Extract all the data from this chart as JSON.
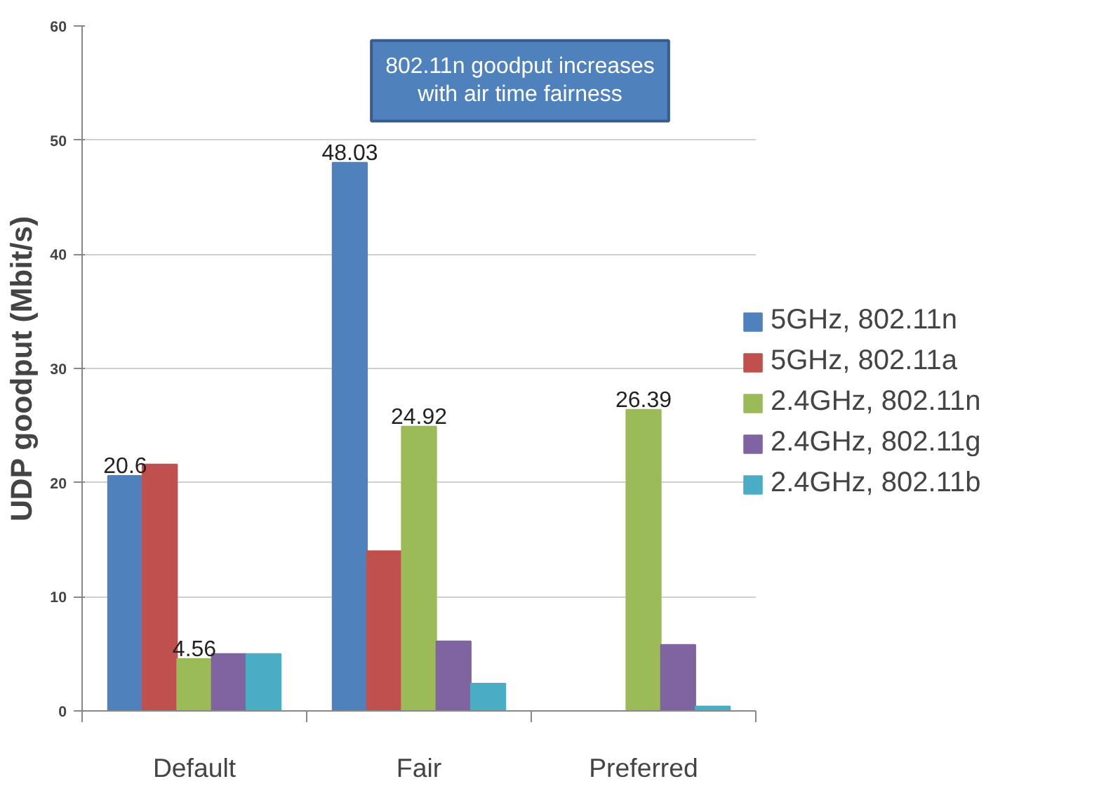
{
  "chart_data": {
    "type": "bar",
    "ylabel": "UDP goodput (Mbit/s)",
    "categories": [
      "Default",
      "Fair",
      "Preferred"
    ],
    "series": [
      {
        "name": "5GHz, 802.11n",
        "color": "#4f81bd",
        "values": [
          20.6,
          48.03,
          null
        ],
        "value_labels": [
          "20.6",
          "48.03",
          null
        ]
      },
      {
        "name": "5GHz, 802.11a",
        "color": "#c0504d",
        "values": [
          21.6,
          14.0,
          null
        ]
      },
      {
        "name": "2.4GHz, 802.11n",
        "color": "#9bbb59",
        "values": [
          4.56,
          24.92,
          26.39
        ],
        "value_labels": [
          "4.56",
          "24.92",
          "26.39"
        ]
      },
      {
        "name": "2.4GHz, 802.11g",
        "color": "#8064a2",
        "values": [
          5.0,
          6.1,
          5.8
        ]
      },
      {
        "name": "2.4GHz, 802.11b",
        "color": "#4bacc6",
        "values": [
          5.0,
          2.4,
          0.4
        ]
      }
    ],
    "ylim": [
      0,
      60
    ],
    "yticks": [
      0,
      10,
      20,
      30,
      40,
      50,
      60
    ],
    "grid": "y",
    "legend": "right",
    "annotations": [
      "802.11n goodput increases with air time fairness"
    ]
  }
}
